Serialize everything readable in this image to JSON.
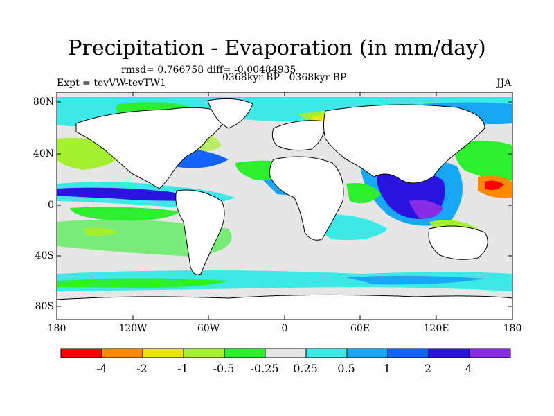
{
  "header": {
    "title": "Precipitation - Evaporation (in mm/day)",
    "stats": "rmsd= 0.766758 diff= -0.00484935",
    "expt": "Expt = tevVW-tevTW1",
    "period": "0368kyr BP - 0368kyr BP",
    "season": "JJA"
  },
  "axes": {
    "y_ticks": [
      "80N",
      "40N",
      "0",
      "40S",
      "80S"
    ],
    "x_ticks": [
      "180",
      "120W",
      "60W",
      "0",
      "60E",
      "120E",
      "180"
    ]
  },
  "colorbar": {
    "colors": [
      "#ff0000",
      "#ff8a00",
      "#e9e600",
      "#a5ef2f",
      "#2eef2e",
      "#e6e6e6",
      "#3ce9e6",
      "#17a7f5",
      "#1463ff",
      "#2b13e0",
      "#8a2be6"
    ],
    "labels": [
      "-4",
      "-2",
      "-1",
      "-0.5",
      "-0.25",
      "0.25",
      "0.5",
      "1",
      "2",
      "4"
    ]
  },
  "palette": {
    "ocean_neutral": "#e6e6e6",
    "land": "#ffffff",
    "coast": "#000000"
  }
}
